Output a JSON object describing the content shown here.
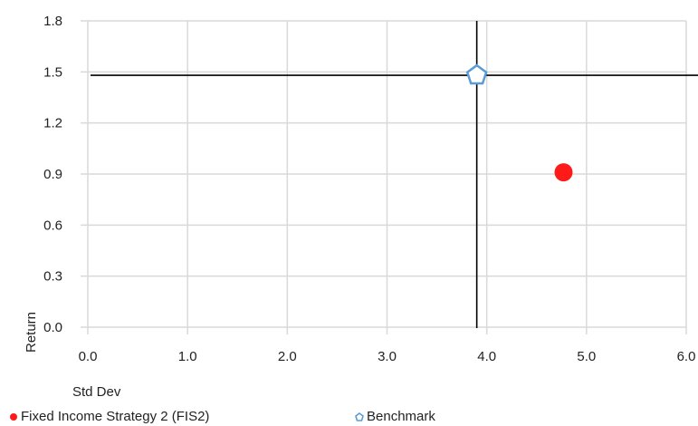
{
  "chart_data": {
    "type": "scatter",
    "xlabel": "Std Dev",
    "ylabel": "Return",
    "xlim": [
      0.0,
      6.0
    ],
    "ylim": [
      0.0,
      1.8
    ],
    "x_ticks": [
      "0.0",
      "1.0",
      "2.0",
      "3.0",
      "4.0",
      "5.0",
      "6.0"
    ],
    "y_ticks": [
      "0.0",
      "0.3",
      "0.6",
      "0.9",
      "1.2",
      "1.5",
      "1.8"
    ],
    "grid": true,
    "crosshair": {
      "x": 3.9,
      "y": 1.48
    },
    "legend_position": "bottom",
    "series": [
      {
        "name": "Fixed Income Strategy 2 (FIS2)",
        "x": 4.77,
        "y": 0.91,
        "marker": "circle",
        "color": "#ff1a1a"
      },
      {
        "name": "Benchmark",
        "x": 3.9,
        "y": 1.48,
        "marker": "pentagon",
        "color": "#5b9bd5"
      }
    ]
  }
}
